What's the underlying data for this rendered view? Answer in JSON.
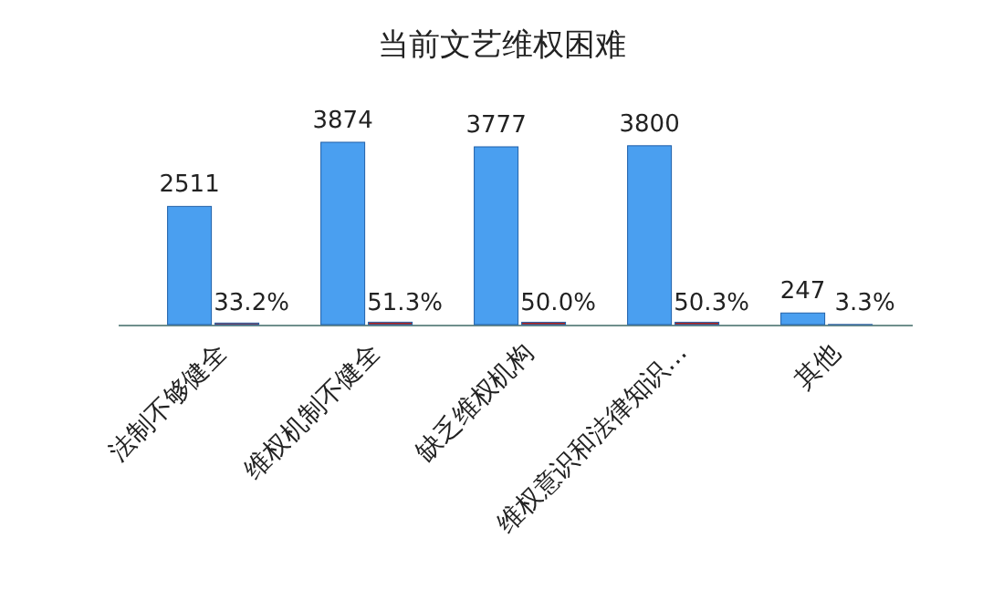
{
  "chart_data": {
    "type": "bar",
    "title": "当前文艺维权困难",
    "categories": [
      "法制不够健全",
      "维权机制不健全",
      "缺乏维权机构",
      "维权意识和法律知识…",
      "其他"
    ],
    "series": [
      {
        "color": "#4a9ff0",
        "values": [
          2511,
          3874,
          3777,
          3800,
          247
        ],
        "value_labels": [
          "2511",
          "3874",
          "3777",
          "3800",
          "247"
        ]
      },
      {
        "color": "#b0231e",
        "values": [
          33.2,
          51.3,
          50.0,
          50.3,
          3.3
        ],
        "value_labels": [
          "33.2%",
          "51.3%",
          "50.0%",
          "50.3%",
          "3.3%"
        ]
      }
    ],
    "grid": false
  }
}
